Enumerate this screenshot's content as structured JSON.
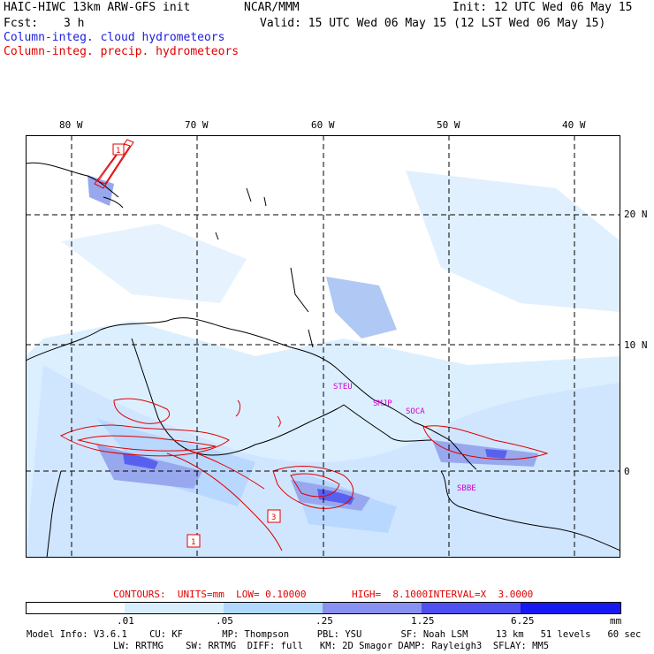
{
  "header": {
    "title": "HAIC-HIWC 13km ARW-GFS init",
    "org": "NCAR/MMM",
    "init": "Init: 12 UTC Wed 06 May 15",
    "fcst_label": "Fcst:",
    "fcst_value": "3 h",
    "valid": "Valid: 15 UTC Wed 06 May 15 (12 LST Wed 06 May 15)",
    "field1": "Column-integ. cloud hydrometeors",
    "field2": "Column-integ. precip. hydrometeors"
  },
  "map": {
    "lon_labels": [
      "80 W",
      "70 W",
      "60 W",
      "50 W",
      "40 W"
    ],
    "lat_labels": [
      "20 N",
      "10 N",
      "0"
    ],
    "station_labels": [
      "STEU",
      "SMJP",
      "SOCA",
      "SBBE"
    ],
    "contour_labels": [
      "1",
      "3",
      "1"
    ]
  },
  "contour_info": {
    "contours": "CONTOURS:  UNITS=mm  LOW= 0.10000",
    "high": "HIGH=  8.1000",
    "interval": "INTERVAL=X  3.0000"
  },
  "colorbar": {
    "unit": "mm",
    "labels": [
      ".01",
      ".05",
      ".25",
      "1.25",
      "6.25"
    ],
    "colors": [
      "#ffffff",
      "#d8eeff",
      "#b0d8ff",
      "#a8b8f0",
      "#8890f0",
      "#5050f0",
      "#1818f0"
    ]
  },
  "footer": {
    "line1": "Model Info: V3.6.1    CU: KF       MP: Thompson     PBL: YSU       SF: Noah LSM     13 km   51 levels   60 sec",
    "line2": "LW: RRTMG    SW: RRTMG  DIFF: full   KM: 2D Smagor DAMP: Rayleigh3  SFLAY: MM5"
  }
}
